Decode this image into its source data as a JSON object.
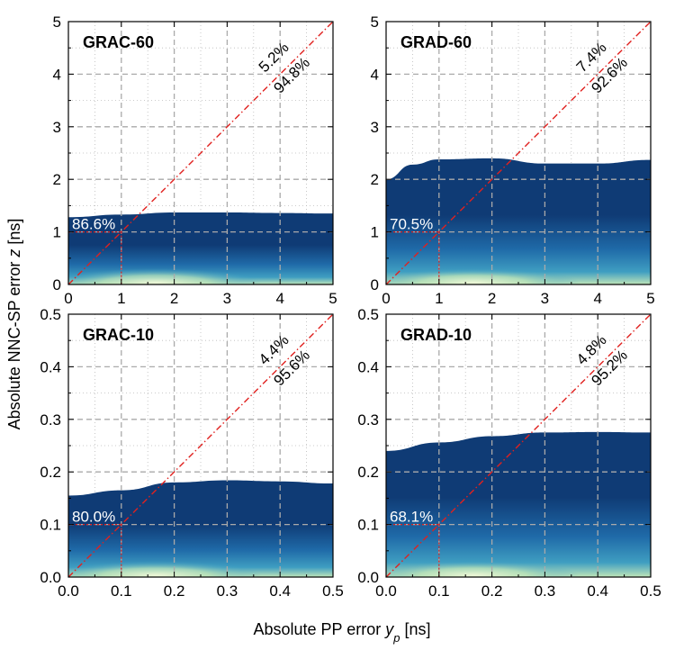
{
  "xlabel": {
    "prefix": "Absolute PP error ",
    "var": "y",
    "sub": "p",
    "unit": " [ns]"
  },
  "ylabel": {
    "prefix": "Absolute NNC-SP error ",
    "var": "z",
    "unit": " [ns]"
  },
  "colors": {
    "band_top": "#0f3b75",
    "band_mid": "#1f6aa8",
    "band_low": "#3f9ec1",
    "band_glow": "#bfe5b8",
    "diagonal": "#e0211f",
    "grid": "#aaaaaa"
  },
  "chart_data": [
    {
      "type": "heatmap",
      "title": "GRAC-60",
      "xlim": [
        0,
        5
      ],
      "ylim": [
        0,
        5
      ],
      "xticks": [
        "0",
        "1",
        "2",
        "3",
        "4",
        "5"
      ],
      "yticks": [
        "0",
        "1",
        "2",
        "3",
        "4",
        "5"
      ],
      "threshold": 1,
      "within_label": "86.6%",
      "above_diag": "5.2%",
      "below_diag": "94.8%",
      "density_top": {
        "x": [
          0,
          1,
          2,
          3,
          4,
          5
        ],
        "y": [
          1.28,
          1.33,
          1.37,
          1.37,
          1.36,
          1.35
        ]
      }
    },
    {
      "type": "heatmap",
      "title": "GRAD-60",
      "xlim": [
        0,
        5
      ],
      "ylim": [
        0,
        5
      ],
      "xticks": [
        "0",
        "1",
        "2",
        "3",
        "4",
        "5"
      ],
      "yticks": [
        "0",
        "1",
        "2",
        "3",
        "4",
        "5"
      ],
      "threshold": 1,
      "within_label": "70.5%",
      "above_diag": "7.4%",
      "below_diag": "92.6%",
      "density_top": {
        "x": [
          0,
          0.5,
          1,
          2,
          3,
          4,
          5
        ],
        "y": [
          2.0,
          2.28,
          2.38,
          2.4,
          2.3,
          2.3,
          2.37
        ]
      }
    },
    {
      "type": "heatmap",
      "title": "GRAC-10",
      "xlim": [
        0,
        0.5
      ],
      "ylim": [
        0,
        0.5
      ],
      "xticks": [
        "0.0",
        "0.1",
        "0.2",
        "0.3",
        "0.4",
        "0.5"
      ],
      "yticks": [
        "0.0",
        "0.1",
        "0.2",
        "0.3",
        "0.4",
        "0.5"
      ],
      "threshold": 0.1,
      "within_label": "80.0%",
      "above_diag": "4.4%",
      "below_diag": "95.6%",
      "density_top": {
        "x": [
          0,
          0.1,
          0.2,
          0.3,
          0.4,
          0.5
        ],
        "y": [
          0.155,
          0.165,
          0.18,
          0.184,
          0.182,
          0.178
        ]
      }
    },
    {
      "type": "heatmap",
      "title": "GRAD-10",
      "xlim": [
        0,
        0.5
      ],
      "ylim": [
        0,
        0.5
      ],
      "xticks": [
        "0.0",
        "0.1",
        "0.2",
        "0.3",
        "0.4",
        "0.5"
      ],
      "yticks": [
        "0.0",
        "0.1",
        "0.2",
        "0.3",
        "0.4",
        "0.5"
      ],
      "threshold": 0.1,
      "within_label": "68.1%",
      "above_diag": "4.8%",
      "below_diag": "95.2%",
      "density_top": {
        "x": [
          0,
          0.1,
          0.2,
          0.3,
          0.4,
          0.5
        ],
        "y": [
          0.24,
          0.256,
          0.268,
          0.275,
          0.276,
          0.275
        ]
      }
    }
  ]
}
